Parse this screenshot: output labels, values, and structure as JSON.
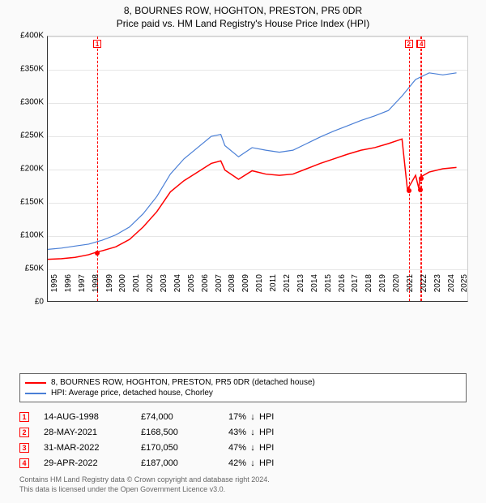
{
  "title": "8, BOURNES ROW, HOGHTON, PRESTON, PR5 0DR",
  "subtitle": "Price paid vs. HM Land Registry's House Price Index (HPI)",
  "chart": {
    "type": "line",
    "background_color": "#ffffff",
    "grid_color": "#e6e6e6",
    "axis_color": "#333333",
    "x_years": [
      1995,
      1996,
      1997,
      1998,
      1999,
      2000,
      2001,
      2002,
      2003,
      2004,
      2005,
      2006,
      2007,
      2008,
      2009,
      2010,
      2011,
      2012,
      2013,
      2014,
      2015,
      2016,
      2017,
      2018,
      2019,
      2020,
      2021,
      2022,
      2023,
      2024,
      2025
    ],
    "xmin": 1995,
    "xmax": 2025.8,
    "ymin": 0,
    "ymax": 400000,
    "ytick_step": 50000,
    "yticks": [
      "£0",
      "£50K",
      "£100K",
      "£150K",
      "£200K",
      "£250K",
      "£300K",
      "£350K",
      "£400K"
    ],
    "label_fontsize": 10,
    "series": [
      {
        "name": "8, BOURNES ROW, HOGHTON, PRESTON, PR5 0DR (detached house)",
        "color": "#ff0000",
        "width": 1.5,
        "data": [
          [
            1995,
            63000
          ],
          [
            1996,
            64000
          ],
          [
            1997,
            66000
          ],
          [
            1998,
            70000
          ],
          [
            1998.6,
            74000
          ],
          [
            1999,
            76000
          ],
          [
            2000,
            82000
          ],
          [
            2001,
            93000
          ],
          [
            2002,
            112000
          ],
          [
            2003,
            135000
          ],
          [
            2004,
            165000
          ],
          [
            2005,
            182000
          ],
          [
            2006,
            195000
          ],
          [
            2007,
            208000
          ],
          [
            2007.7,
            212000
          ],
          [
            2008,
            198000
          ],
          [
            2009,
            184000
          ],
          [
            2010,
            197000
          ],
          [
            2011,
            192000
          ],
          [
            2012,
            190000
          ],
          [
            2013,
            192000
          ],
          [
            2014,
            200000
          ],
          [
            2015,
            208000
          ],
          [
            2016,
            215000
          ],
          [
            2017,
            222000
          ],
          [
            2018,
            228000
          ],
          [
            2019,
            232000
          ],
          [
            2020,
            238000
          ],
          [
            2021,
            245000
          ],
          [
            2021.4,
            168500
          ],
          [
            2022,
            190000
          ],
          [
            2022.24,
            170050
          ],
          [
            2022.32,
            187000
          ],
          [
            2023,
            195000
          ],
          [
            2024,
            200000
          ],
          [
            2025,
            202000
          ]
        ]
      },
      {
        "name": "HPI: Average price, detached house, Chorley",
        "color": "#4a7fd6",
        "width": 1.2,
        "data": [
          [
            1995,
            78000
          ],
          [
            1996,
            80000
          ],
          [
            1997,
            83000
          ],
          [
            1998,
            86000
          ],
          [
            1999,
            92000
          ],
          [
            2000,
            100000
          ],
          [
            2001,
            112000
          ],
          [
            2002,
            132000
          ],
          [
            2003,
            158000
          ],
          [
            2004,
            192000
          ],
          [
            2005,
            215000
          ],
          [
            2006,
            232000
          ],
          [
            2007,
            249000
          ],
          [
            2007.7,
            252000
          ],
          [
            2008,
            235000
          ],
          [
            2009,
            218000
          ],
          [
            2010,
            232000
          ],
          [
            2011,
            228000
          ],
          [
            2012,
            225000
          ],
          [
            2013,
            228000
          ],
          [
            2014,
            238000
          ],
          [
            2015,
            248000
          ],
          [
            2016,
            257000
          ],
          [
            2017,
            265000
          ],
          [
            2018,
            273000
          ],
          [
            2019,
            280000
          ],
          [
            2020,
            288000
          ],
          [
            2021,
            310000
          ],
          [
            2022,
            335000
          ],
          [
            2023,
            345000
          ],
          [
            2024,
            342000
          ],
          [
            2025,
            345000
          ]
        ]
      }
    ],
    "markers": [
      {
        "n": "1",
        "year": 1998.62,
        "price": 74000
      },
      {
        "n": "2",
        "year": 2021.4,
        "price": 168500
      },
      {
        "n": "3",
        "year": 2022.24,
        "price": 170050
      },
      {
        "n": "4",
        "year": 2022.32,
        "price": 187000
      }
    ]
  },
  "legend": {
    "items": [
      {
        "color": "#ff0000",
        "label": "8, BOURNES ROW, HOGHTON, PRESTON, PR5 0DR (detached house)"
      },
      {
        "color": "#4a7fd6",
        "label": "HPI: Average price, detached house, Chorley"
      }
    ]
  },
  "transactions": [
    {
      "n": "1",
      "date": "14-AUG-1998",
      "price": "£74,000",
      "pct": "17%",
      "dir": "↓",
      "suffix": "HPI"
    },
    {
      "n": "2",
      "date": "28-MAY-2021",
      "price": "£168,500",
      "pct": "43%",
      "dir": "↓",
      "suffix": "HPI"
    },
    {
      "n": "3",
      "date": "31-MAR-2022",
      "price": "£170,050",
      "pct": "47%",
      "dir": "↓",
      "suffix": "HPI"
    },
    {
      "n": "4",
      "date": "29-APR-2022",
      "price": "£187,000",
      "pct": "42%",
      "dir": "↓",
      "suffix": "HPI"
    }
  ],
  "footer": {
    "line1": "Contains HM Land Registry data © Crown copyright and database right 2024.",
    "line2": "This data is licensed under the Open Government Licence v3.0."
  }
}
